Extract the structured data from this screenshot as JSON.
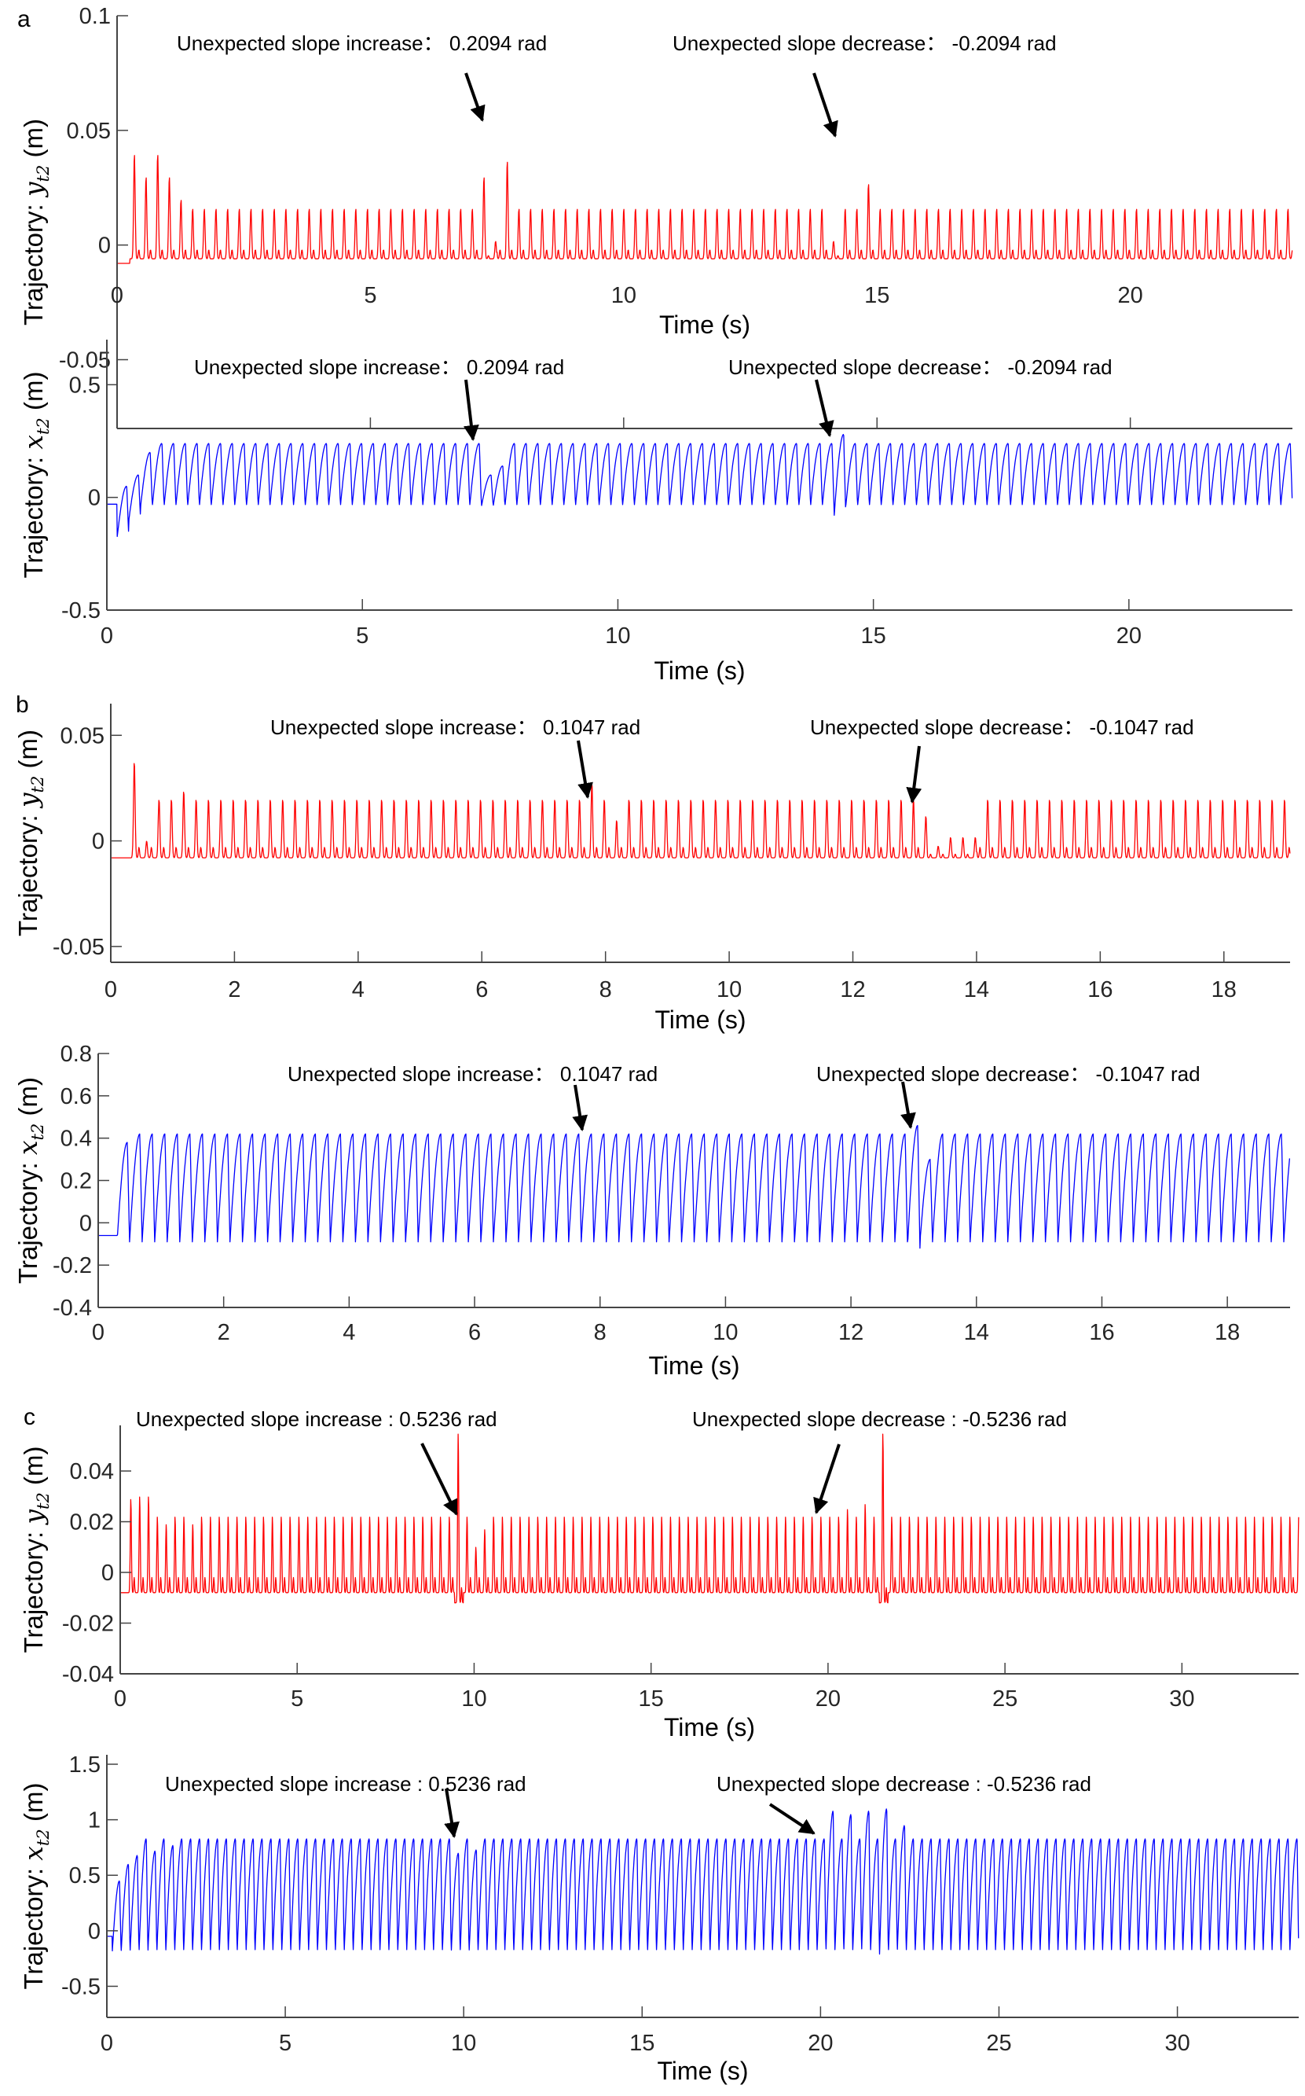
{
  "chart_data": [
    {
      "type": "line",
      "panel_label": "a",
      "xlabel": "Time  (s)",
      "ylabel": {
        "prefix": "Trajectory:",
        "symbol": "y",
        "subscript": "t2",
        "unit": "(m)"
      },
      "xlim": [
        0,
        23.2
      ],
      "ylim": [
        -0.08,
        0.1
      ],
      "xticks": [
        0,
        5,
        10,
        15,
        20
      ],
      "yticks": [
        -0.05,
        0,
        0.05,
        0.1
      ],
      "ytick_labels": [
        "-0.05",
        "0",
        "0.05",
        "0.1"
      ],
      "color": "#ff0000",
      "grid": false,
      "series": {
        "shape": "pulse",
        "start_time": 0.25,
        "initial_value": -0.008,
        "period": 0.23,
        "peak": 0.016,
        "trough": -0.006,
        "secondary": 0.004,
        "special_peaks": [
          {
            "t": 0.4,
            "y": 0.04
          },
          {
            "t": 0.6,
            "y": 0.03
          },
          {
            "t": 0.85,
            "y": 0.04
          },
          {
            "t": 1.1,
            "y": 0.03
          },
          {
            "t": 1.35,
            "y": 0.02
          },
          {
            "t": 7.2,
            "y": 0.03
          },
          {
            "t": 7.6,
            "y": 0.037
          },
          {
            "t": 14.85,
            "y": 0.027
          }
        ],
        "quiet_intervals": [
          [
            7.3,
            7.5
          ],
          [
            14.05,
            14.3
          ]
        ]
      },
      "annotations": [
        {
          "text": "Unexpected slope increase：  0.2094 rad",
          "time": 7.2
        },
        {
          "text": "Unexpected slope decrease：  -0.2094 rad",
          "time": 14.1
        }
      ]
    },
    {
      "type": "line",
      "panel_label": "",
      "xlabel": "Time  (s)",
      "ylabel": {
        "prefix": "Trajectory:",
        "symbol": "x",
        "subscript": "t2",
        "unit": "(m)"
      },
      "xlim": [
        0,
        23.2
      ],
      "ylim": [
        -0.5,
        0.7
      ],
      "xticks": [
        0,
        5,
        10,
        15,
        20
      ],
      "yticks": [
        -0.5,
        0,
        0.5
      ],
      "ytick_labels": [
        "-0.5",
        "0",
        "0.5"
      ],
      "color": "#0000ff",
      "grid": false,
      "series": {
        "shape": "saw",
        "start_time": 0.2,
        "initial_value": -0.03,
        "period": 0.23,
        "peak": 0.24,
        "trough": -0.04,
        "special_peaks": [
          {
            "t": 0.3,
            "y": 0.05
          },
          {
            "t": 0.55,
            "y": 0.1
          },
          {
            "t": 0.8,
            "y": 0.2
          },
          {
            "t": 7.4,
            "y": 0.1
          },
          {
            "t": 7.7,
            "y": 0.14
          },
          {
            "t": 14.3,
            "y": 0.28
          }
        ],
        "special_troughs": [
          {
            "t": 0.25,
            "y": -0.18
          },
          {
            "t": 0.5,
            "y": -0.1
          },
          {
            "t": 14.3,
            "y": -0.09
          }
        ]
      },
      "annotations": [
        {
          "text": "Unexpected slope increase：  0.2094 rad",
          "time": 7.2
        },
        {
          "text": "Unexpected slope decrease：  -0.2094 rad",
          "time": 14.2
        }
      ]
    },
    {
      "type": "line",
      "panel_label": "b",
      "xlabel": "Time  (s)",
      "ylabel": {
        "prefix": "Trajectory:",
        "symbol": "y",
        "subscript": "t2",
        "unit": "(m)"
      },
      "xlim": [
        0,
        19.07
      ],
      "ylim": [
        -0.0575,
        0.065
      ],
      "xticks": [
        0,
        2,
        4,
        6,
        8,
        10,
        12,
        14,
        16,
        18
      ],
      "yticks": [
        -0.05,
        0,
        0.05
      ],
      "ytick_labels": [
        "-0.05",
        "0",
        "0.05"
      ],
      "color": "#ff0000",
      "grid": false,
      "series": {
        "shape": "pulse",
        "start_time": 0.3,
        "initial_value": -0.008,
        "period": 0.2,
        "peak": 0.02,
        "trough": -0.008,
        "secondary": 0.005,
        "special_peaks": [
          {
            "t": 0.45,
            "y": 0.038
          },
          {
            "t": 0.65,
            "y": 0.0
          },
          {
            "t": 1.25,
            "y": 0.024
          },
          {
            "t": 7.8,
            "y": 0.028
          },
          {
            "t": 8.1,
            "y": 0.01
          },
          {
            "t": 13.1,
            "y": 0.012
          },
          {
            "t": 13.3,
            "y": 0.008
          }
        ],
        "quiet_intervals": [
          [
            13.2,
            14.0
          ]
        ]
      },
      "annotations": [
        {
          "text": "Unexpected slope increase：  0.1047 rad",
          "time": 7.8
        },
        {
          "text": "Unexpected slope decrease：  -0.1047 rad",
          "time": 13.0
        }
      ]
    },
    {
      "type": "line",
      "panel_label": "",
      "xlabel": "Time  (s)",
      "ylabel": {
        "prefix": "Trajectory:",
        "symbol": "x",
        "subscript": "t2",
        "unit": "(m)"
      },
      "xlim": [
        0,
        19.0
      ],
      "ylim": [
        -0.4,
        0.8
      ],
      "xticks": [
        0,
        2,
        4,
        6,
        8,
        10,
        12,
        14,
        16,
        18
      ],
      "yticks": [
        -0.4,
        -0.2,
        0,
        0.2,
        0.4,
        0.6,
        0.8
      ],
      "ytick_labels": [
        "-0.4",
        "-0.2",
        "0",
        "0.2",
        "0.4",
        "0.6",
        "0.8"
      ],
      "color": "#0000ff",
      "grid": false,
      "series": {
        "shape": "saw",
        "start_time": 0.3,
        "initial_value": -0.06,
        "period": 0.2,
        "peak": 0.42,
        "trough": -0.09,
        "special_peaks": [
          {
            "t": 0.45,
            "y": 0.38
          },
          {
            "t": 13.0,
            "y": 0.46
          },
          {
            "t": 13.2,
            "y": 0.3
          }
        ],
        "special_troughs": [
          {
            "t": 13.05,
            "y": -0.12
          }
        ]
      },
      "annotations": [
        {
          "text": "Unexpected slope increase：  0.1047 rad",
          "time": 7.8
        },
        {
          "text": "Unexpected slope decrease：  -0.1047 rad",
          "time": 13.0
        }
      ]
    },
    {
      "type": "line",
      "panel_label": "c",
      "xlabel": "Time  (s)",
      "ylabel": {
        "prefix": "Trajectory:",
        "symbol": "y",
        "subscript": "t2",
        "unit": "(m)"
      },
      "xlim": [
        0,
        33.3
      ],
      "ylim": [
        -0.04,
        0.058
      ],
      "xticks": [
        0,
        5,
        10,
        15,
        20,
        25,
        30
      ],
      "yticks": [
        -0.04,
        -0.02,
        0,
        0.02,
        0.04
      ],
      "ytick_labels": [
        "-0.04",
        "-0.02",
        "0",
        "0.02",
        "0.04"
      ],
      "color": "#ff0000",
      "grid": false,
      "series": {
        "shape": "pulse",
        "start_time": 0.2,
        "initial_value": -0.008,
        "period": 0.25,
        "peak": 0.022,
        "trough": -0.008,
        "secondary": 0.006,
        "special_peaks": [
          {
            "t": 0.4,
            "y": 0.029
          },
          {
            "t": 0.65,
            "y": 0.03
          },
          {
            "t": 0.9,
            "y": 0.03
          },
          {
            "t": 1.4,
            "y": 0.019
          },
          {
            "t": 2.0,
            "y": 0.019
          },
          {
            "t": 9.6,
            "y": 0.055
          },
          {
            "t": 10.1,
            "y": 0.01
          },
          {
            "t": 10.4,
            "y": 0.017
          },
          {
            "t": 20.5,
            "y": 0.025
          },
          {
            "t": 21.0,
            "y": 0.027
          },
          {
            "t": 21.6,
            "y": 0.055
          }
        ],
        "special_troughs": [
          {
            "t": 9.55,
            "y": -0.012
          },
          {
            "t": 21.55,
            "y": -0.012
          }
        ]
      },
      "annotations": [
        {
          "text": "Unexpected slope increase :  0.5236 rad",
          "time": 9.6
        },
        {
          "text": "Unexpected slope decrease :  -0.5236 rad",
          "time": 19.7
        }
      ]
    },
    {
      "type": "line",
      "panel_label": "",
      "xlabel": "Time  (s)",
      "ylabel": {
        "prefix": "Trajectory:",
        "symbol": "x",
        "subscript": "t2",
        "unit": "(m)"
      },
      "xlim": [
        0,
        33.4
      ],
      "ylim": [
        -0.78,
        1.585
      ],
      "xticks": [
        0,
        5,
        10,
        15,
        20,
        25,
        30
      ],
      "yticks": [
        -0.5,
        0,
        0.5,
        1,
        1.5
      ],
      "ytick_labels": [
        "-0.5",
        "0",
        "0.5",
        "1",
        "1.5"
      ],
      "color": "#0000ff",
      "grid": false,
      "series": {
        "shape": "saw",
        "start_time": 0.15,
        "initial_value": -0.05,
        "period": 0.25,
        "peak": 0.83,
        "trough": -0.2,
        "special_peaks": [
          {
            "t": 0.3,
            "y": 0.45
          },
          {
            "t": 0.55,
            "y": 0.6
          },
          {
            "t": 0.8,
            "y": 0.68
          },
          {
            "t": 1.2,
            "y": 0.72
          },
          {
            "t": 1.8,
            "y": 0.77
          },
          {
            "t": 9.8,
            "y": 0.7
          },
          {
            "t": 10.2,
            "y": 0.73
          },
          {
            "t": 20.2,
            "y": 1.08
          },
          {
            "t": 20.7,
            "y": 1.05
          },
          {
            "t": 21.2,
            "y": 1.08
          },
          {
            "t": 21.7,
            "y": 1.1
          },
          {
            "t": 22.3,
            "y": 0.95
          }
        ],
        "special_troughs": [
          {
            "t": 21.7,
            "y": -0.25
          }
        ]
      },
      "annotations": [
        {
          "text": "Unexpected slope increase :  0.5236 rad",
          "time": 9.7
        },
        {
          "text": "Unexpected slope decrease :  -0.5236 rad",
          "time": 20.0
        }
      ]
    }
  ]
}
